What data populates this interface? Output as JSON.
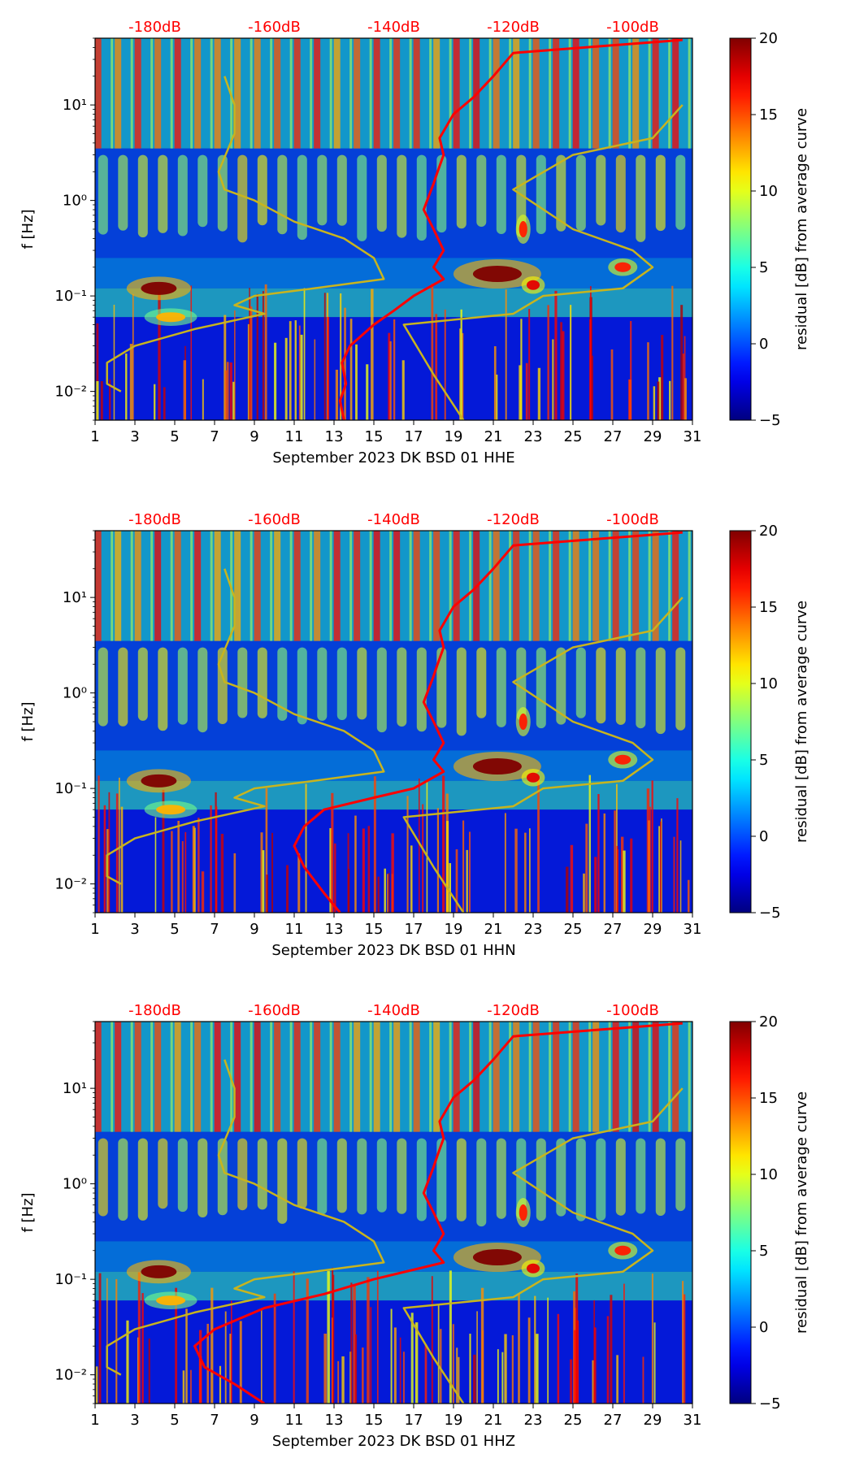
{
  "chart_data": [
    {
      "type": "heatmap",
      "xlabel": "September 2023 DK BSD 01 HHE",
      "ylabel": "f [Hz]",
      "x_ticks": [
        "1",
        "3",
        "5",
        "7",
        "9",
        "11",
        "13",
        "15",
        "17",
        "19",
        "21",
        "23",
        "25",
        "27",
        "29",
        "31"
      ],
      "y_ticks": [
        "10⁻²",
        "10⁻¹",
        "10⁰",
        "10¹"
      ],
      "top_labels": [
        "-180dB",
        "-160dB",
        "-140dB",
        "-120dB",
        "-100dB"
      ],
      "top_label_color": "#ff0000",
      "xlim": [
        1,
        31
      ],
      "ylim": [
        0.005,
        50
      ],
      "y_scale": "log",
      "colorbar": {
        "label": "residual [dB] from average curve",
        "range": [
          -5,
          20
        ],
        "ticks": [
          "−5",
          "0",
          "5",
          "10",
          "15",
          "20"
        ],
        "colormap": "jet"
      },
      "series": [
        {
          "color": "#ff0000",
          "x": [
            13.5,
            13.3,
            13.6,
            13.4,
            13.8,
            15.0,
            16.0,
            17.0,
            18.5,
            18.0,
            18.5,
            18.0,
            17.5,
            18.0,
            18.2,
            18.5,
            18.3,
            19.0,
            20.0,
            21.0,
            22.0,
            30.5
          ],
          "y": [
            0.005,
            0.008,
            0.012,
            0.02,
            0.03,
            0.05,
            0.07,
            0.1,
            0.15,
            0.2,
            0.3,
            0.5,
            0.8,
            1.5,
            2.0,
            3.0,
            4.5,
            8.0,
            12.0,
            20.0,
            35.0,
            48.0
          ]
        },
        {
          "color": "#c8b41e",
          "x": [
            2.3,
            1.6,
            1.6,
            3.0,
            6.0,
            9.5,
            8.0,
            9.0,
            12.0,
            15.5,
            15.0,
            13.5,
            11.0,
            9.0,
            7.5,
            7.2,
            8.0,
            8.0,
            7.5
          ],
          "y": [
            0.01,
            0.012,
            0.02,
            0.03,
            0.045,
            0.065,
            0.08,
            0.1,
            0.12,
            0.15,
            0.25,
            0.4,
            0.6,
            1.0,
            1.3,
            2.0,
            5.0,
            10.0,
            20.0
          ]
        },
        {
          "color": "#c8b41e",
          "x": [
            19.5,
            18.0,
            16.5,
            22.0,
            23.5,
            27.5,
            29.0,
            28.0,
            25.0,
            22.0,
            25.0,
            29.0,
            30.5
          ],
          "y": [
            0.005,
            0.015,
            0.05,
            0.065,
            0.1,
            0.12,
            0.2,
            0.3,
            0.5,
            1.3,
            3.0,
            4.5,
            10.0
          ]
        }
      ]
    },
    {
      "type": "heatmap",
      "xlabel": "September 2023 DK BSD 01 HHN",
      "ylabel": "f [Hz]",
      "x_ticks": [
        "1",
        "3",
        "5",
        "7",
        "9",
        "11",
        "13",
        "15",
        "17",
        "19",
        "21",
        "23",
        "25",
        "27",
        "29",
        "31"
      ],
      "y_ticks": [
        "10⁻²",
        "10⁻¹",
        "10⁰",
        "10¹"
      ],
      "top_labels": [
        "-180dB",
        "-160dB",
        "-140dB",
        "-120dB",
        "-100dB"
      ],
      "top_label_color": "#ff0000",
      "xlim": [
        1,
        31
      ],
      "ylim": [
        0.005,
        50
      ],
      "y_scale": "log",
      "colorbar": {
        "label": "residual [dB] from average curve",
        "range": [
          -5,
          20
        ],
        "ticks": [
          "−5",
          "0",
          "5",
          "10",
          "15",
          "20"
        ],
        "colormap": "jet"
      },
      "series": [
        {
          "color": "#ff0000",
          "x": [
            13.3,
            12.5,
            11.5,
            11.0,
            11.5,
            12.5,
            15.0,
            17.0,
            18.5,
            18.0,
            18.5,
            18.0,
            17.5,
            18.0,
            18.2,
            18.5,
            18.3,
            19.0,
            20.0,
            21.0,
            22.0,
            30.5
          ],
          "y": [
            0.005,
            0.008,
            0.015,
            0.025,
            0.04,
            0.06,
            0.08,
            0.1,
            0.15,
            0.2,
            0.3,
            0.5,
            0.8,
            1.5,
            2.0,
            3.0,
            4.5,
            8.0,
            12.0,
            20.0,
            35.0,
            48.0
          ]
        },
        {
          "color": "#c8b41e",
          "x": [
            2.3,
            1.6,
            1.6,
            3.0,
            6.0,
            9.5,
            8.0,
            9.0,
            12.0,
            15.5,
            15.0,
            13.5,
            11.0,
            9.0,
            7.5,
            7.2,
            8.0,
            8.0,
            7.5
          ],
          "y": [
            0.01,
            0.012,
            0.02,
            0.03,
            0.045,
            0.065,
            0.08,
            0.1,
            0.12,
            0.15,
            0.25,
            0.4,
            0.6,
            1.0,
            1.3,
            2.0,
            5.0,
            10.0,
            20.0
          ]
        },
        {
          "color": "#c8b41e",
          "x": [
            19.5,
            18.0,
            16.5,
            22.0,
            23.5,
            27.5,
            29.0,
            28.0,
            25.0,
            22.0,
            25.0,
            29.0,
            30.5
          ],
          "y": [
            0.005,
            0.015,
            0.05,
            0.065,
            0.1,
            0.12,
            0.2,
            0.3,
            0.5,
            1.3,
            3.0,
            4.5,
            10.0
          ]
        }
      ]
    },
    {
      "type": "heatmap",
      "xlabel": "September 2023 DK BSD 01 HHZ",
      "ylabel": "f [Hz]",
      "x_ticks": [
        "1",
        "3",
        "5",
        "7",
        "9",
        "11",
        "13",
        "15",
        "17",
        "19",
        "21",
        "23",
        "25",
        "27",
        "29",
        "31"
      ],
      "y_ticks": [
        "10⁻²",
        "10⁻¹",
        "10⁰",
        "10¹"
      ],
      "top_labels": [
        "-180dB",
        "-160dB",
        "-140dB",
        "-120dB",
        "-100dB"
      ],
      "top_label_color": "#ff0000",
      "xlim": [
        1,
        31
      ],
      "ylim": [
        0.005,
        50
      ],
      "y_scale": "log",
      "colorbar": {
        "label": "residual [dB] from average curve",
        "range": [
          -5,
          20
        ],
        "ticks": [
          "−5",
          "0",
          "5",
          "10",
          "15",
          "20"
        ],
        "colormap": "jet"
      },
      "series": [
        {
          "color": "#ff0000",
          "x": [
            9.5,
            8.0,
            6.5,
            6.0,
            7.0,
            9.5,
            12.5,
            15.0,
            18.5,
            18.0,
            18.5,
            18.0,
            17.5,
            18.0,
            18.2,
            18.5,
            18.3,
            19.0,
            20.0,
            21.0,
            22.0,
            30.5
          ],
          "y": [
            0.005,
            0.008,
            0.012,
            0.02,
            0.03,
            0.05,
            0.07,
            0.1,
            0.15,
            0.2,
            0.3,
            0.5,
            0.8,
            1.5,
            2.0,
            3.0,
            4.5,
            8.0,
            12.0,
            20.0,
            35.0,
            48.0
          ]
        },
        {
          "color": "#c8b41e",
          "x": [
            2.3,
            1.6,
            1.6,
            3.0,
            6.0,
            9.5,
            8.0,
            9.0,
            12.0,
            15.5,
            15.0,
            13.5,
            11.0,
            9.0,
            7.5,
            7.2,
            8.0,
            8.0,
            7.5
          ],
          "y": [
            0.01,
            0.012,
            0.02,
            0.03,
            0.045,
            0.065,
            0.08,
            0.1,
            0.12,
            0.15,
            0.25,
            0.4,
            0.6,
            1.0,
            1.3,
            2.0,
            5.0,
            10.0,
            20.0
          ]
        },
        {
          "color": "#c8b41e",
          "x": [
            19.5,
            18.0,
            16.5,
            22.0,
            23.5,
            27.5,
            29.0,
            28.0,
            25.0,
            22.0,
            25.0,
            29.0,
            30.5
          ],
          "y": [
            0.005,
            0.015,
            0.05,
            0.065,
            0.1,
            0.12,
            0.2,
            0.3,
            0.5,
            1.3,
            3.0,
            4.5,
            10.0
          ]
        }
      ]
    }
  ]
}
